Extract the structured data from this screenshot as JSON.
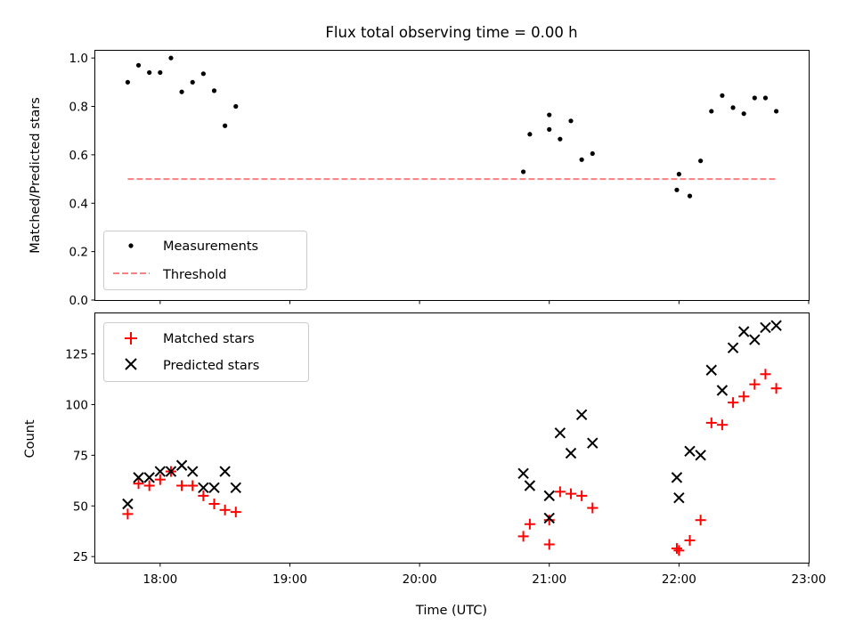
{
  "chart_data": [
    {
      "type": "scatter",
      "title": "Flux total observing time = 0.00 h",
      "xlabel": "",
      "ylabel": "Matched/Predicted stars",
      "ylim": [
        0,
        1.03
      ],
      "xlim": [
        "17:30",
        "23:00"
      ],
      "yticks": [
        "0.0",
        "0.2",
        "0.4",
        "0.6",
        "0.8",
        "1.0"
      ],
      "legend_position": "lower-left",
      "series": [
        {
          "name": "Measurements",
          "marker": "dot",
          "color": "#000000",
          "points": [
            [
              "17:45",
              0.9
            ],
            [
              "17:50",
              0.97
            ],
            [
              "17:55",
              0.94
            ],
            [
              "18:00",
              0.94
            ],
            [
              "18:05",
              1.0
            ],
            [
              "18:10",
              0.86
            ],
            [
              "18:15",
              0.9
            ],
            [
              "18:20",
              0.935
            ],
            [
              "18:25",
              0.865
            ],
            [
              "18:30",
              0.72
            ],
            [
              "18:35",
              0.8
            ],
            [
              "20:48",
              0.53
            ],
            [
              "20:51",
              0.685
            ],
            [
              "21:00",
              0.765
            ],
            [
              "21:00",
              0.705
            ],
            [
              "21:05",
              0.665
            ],
            [
              "21:10",
              0.74
            ],
            [
              "21:15",
              0.58
            ],
            [
              "21:20",
              0.605
            ],
            [
              "21:59",
              0.455
            ],
            [
              "22:00",
              0.52
            ],
            [
              "22:05",
              0.43
            ],
            [
              "22:10",
              0.575
            ],
            [
              "22:15",
              0.78
            ],
            [
              "22:20",
              0.845
            ],
            [
              "22:25",
              0.795
            ],
            [
              "22:30",
              0.77
            ],
            [
              "22:35",
              0.835
            ],
            [
              "22:40",
              0.835
            ],
            [
              "22:45",
              0.78
            ]
          ]
        },
        {
          "name": "Threshold",
          "marker": "dashed-line",
          "color": "#ff7f7f",
          "points": [
            [
              "17:45",
              0.5
            ],
            [
              "22:45",
              0.5
            ]
          ]
        }
      ]
    },
    {
      "type": "scatter",
      "title": "",
      "xlabel": "Time (UTC)",
      "ylabel": "Count",
      "ylim": [
        22,
        145
      ],
      "xlim": [
        "17:30",
        "23:00"
      ],
      "yticks": [
        "25",
        "50",
        "75",
        "100",
        "125"
      ],
      "xticks": [
        "18:00",
        "19:00",
        "20:00",
        "21:00",
        "22:00",
        "23:00"
      ],
      "legend_position": "top-left",
      "series": [
        {
          "name": "Matched stars",
          "marker": "plus",
          "color": "#ff0000",
          "points": [
            [
              "17:45",
              46
            ],
            [
              "17:50",
              61
            ],
            [
              "17:55",
              60
            ],
            [
              "18:00",
              63
            ],
            [
              "18:05",
              67
            ],
            [
              "18:10",
              60
            ],
            [
              "18:15",
              60
            ],
            [
              "18:20",
              55
            ],
            [
              "18:25",
              51
            ],
            [
              "18:30",
              48
            ],
            [
              "18:35",
              47
            ],
            [
              "20:48",
              35
            ],
            [
              "20:51",
              41
            ],
            [
              "21:00",
              31
            ],
            [
              "21:00",
              43
            ],
            [
              "21:05",
              57
            ],
            [
              "21:10",
              56
            ],
            [
              "21:15",
              55
            ],
            [
              "21:20",
              49
            ],
            [
              "21:59",
              29
            ],
            [
              "22:00",
              28
            ],
            [
              "22:05",
              33
            ],
            [
              "22:10",
              43
            ],
            [
              "22:15",
              91
            ],
            [
              "22:20",
              90
            ],
            [
              "22:25",
              101
            ],
            [
              "22:30",
              104
            ],
            [
              "22:35",
              110
            ],
            [
              "22:40",
              115
            ],
            [
              "22:45",
              108
            ]
          ]
        },
        {
          "name": "Predicted stars",
          "marker": "x",
          "color": "#000000",
          "points": [
            [
              "17:45",
              51
            ],
            [
              "17:50",
              64
            ],
            [
              "17:55",
              64
            ],
            [
              "18:00",
              67
            ],
            [
              "18:05",
              67
            ],
            [
              "18:10",
              70
            ],
            [
              "18:15",
              67
            ],
            [
              "18:20",
              59
            ],
            [
              "18:25",
              59
            ],
            [
              "18:30",
              67
            ],
            [
              "18:35",
              59
            ],
            [
              "20:48",
              66
            ],
            [
              "20:51",
              60
            ],
            [
              "21:00",
              44
            ],
            [
              "21:00",
              55
            ],
            [
              "21:05",
              86
            ],
            [
              "21:10",
              76
            ],
            [
              "21:15",
              95
            ],
            [
              "21:20",
              81
            ],
            [
              "21:59",
              64
            ],
            [
              "22:00",
              54
            ],
            [
              "22:05",
              77
            ],
            [
              "22:10",
              75
            ],
            [
              "22:15",
              117
            ],
            [
              "22:20",
              107
            ],
            [
              "22:25",
              128
            ],
            [
              "22:30",
              136
            ],
            [
              "22:35",
              132
            ],
            [
              "22:40",
              138
            ],
            [
              "22:45",
              139
            ]
          ]
        }
      ]
    }
  ]
}
